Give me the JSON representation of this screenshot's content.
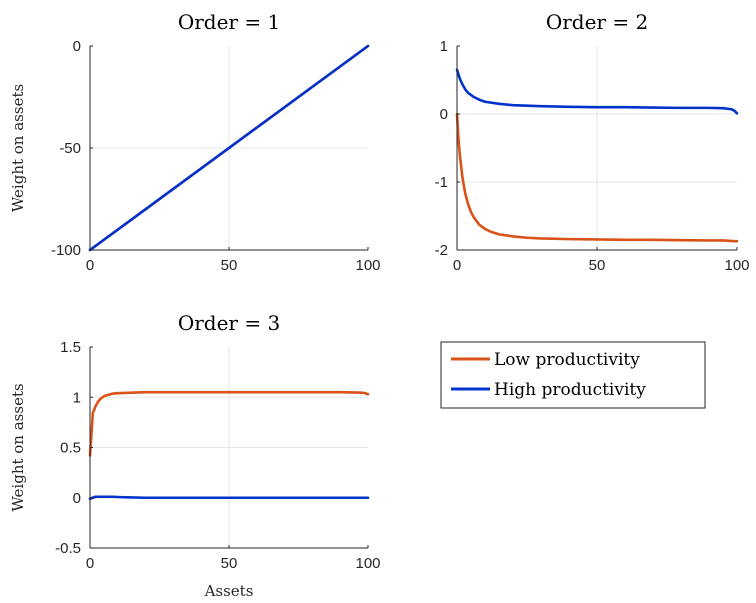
{
  "colors": {
    "low": "#D95319",
    "high": "#0033CC"
  },
  "legend": {
    "items": [
      {
        "label": "Low productivity",
        "color": "#D95319"
      },
      {
        "label": "High productivity",
        "color": "#0033CC"
      }
    ]
  },
  "chart_data": [
    {
      "type": "line",
      "title": "Order = 1",
      "xlabel": "",
      "ylabel": "Weight on assets",
      "xlim": [
        0,
        100
      ],
      "ylim": [
        -100,
        0
      ],
      "xticks": [
        0,
        50,
        100
      ],
      "yticks": [
        -100,
        -50,
        0
      ],
      "xtick_labels": [
        "0",
        "50",
        "100"
      ],
      "ytick_labels": [
        "-100",
        "-50",
        "0"
      ],
      "grid": true,
      "series": [
        {
          "key": "low",
          "color": "#D95319",
          "x": [
            0,
            100
          ],
          "y": [
            -100,
            0
          ]
        },
        {
          "key": "high",
          "color": "#0033CC",
          "x": [
            0,
            100
          ],
          "y": [
            -100,
            0
          ]
        }
      ]
    },
    {
      "type": "line",
      "title": "Order = 2",
      "xlabel": "",
      "ylabel": "",
      "xlim": [
        0,
        100
      ],
      "ylim": [
        -2,
        1
      ],
      "xticks": [
        0,
        50,
        100
      ],
      "yticks": [
        -2,
        -1,
        0,
        1
      ],
      "xtick_labels": [
        "0",
        "50",
        "100"
      ],
      "ytick_labels": [
        "-2",
        "-1",
        "0",
        "1"
      ],
      "grid": true,
      "series": [
        {
          "key": "low",
          "color": "#D95319",
          "x": [
            0,
            0.5,
            1,
            2,
            3,
            4,
            5,
            6,
            8,
            10,
            12,
            15,
            20,
            25,
            30,
            40,
            50,
            60,
            70,
            80,
            90,
            95,
            99,
            100
          ],
          "y": [
            0,
            -0.35,
            -0.6,
            -0.95,
            -1.18,
            -1.33,
            -1.44,
            -1.52,
            -1.63,
            -1.69,
            -1.73,
            -1.77,
            -1.8,
            -1.82,
            -1.83,
            -1.84,
            -1.845,
            -1.85,
            -1.85,
            -1.855,
            -1.86,
            -1.86,
            -1.87,
            -1.87
          ]
        },
        {
          "key": "high",
          "color": "#0033CC",
          "x": [
            0,
            1,
            2,
            3,
            4,
            6,
            8,
            10,
            15,
            20,
            30,
            40,
            50,
            60,
            70,
            80,
            90,
            95,
            98,
            99,
            100
          ],
          "y": [
            0.65,
            0.52,
            0.43,
            0.36,
            0.31,
            0.25,
            0.21,
            0.18,
            0.15,
            0.13,
            0.115,
            0.105,
            0.1,
            0.1,
            0.095,
            0.09,
            0.09,
            0.085,
            0.07,
            0.05,
            0.01
          ]
        }
      ]
    },
    {
      "type": "line",
      "title": "Order = 3",
      "xlabel": "Assets",
      "ylabel": "Weight on assets",
      "xlim": [
        0,
        100
      ],
      "ylim": [
        -0.5,
        1.5
      ],
      "xticks": [
        0,
        50,
        100
      ],
      "yticks": [
        -0.5,
        0,
        0.5,
        1,
        1.5
      ],
      "xtick_labels": [
        "0",
        "50",
        "100"
      ],
      "ytick_labels": [
        "-0.5",
        "0",
        "0.5",
        "1",
        "1.5"
      ],
      "grid": true,
      "series": [
        {
          "key": "low",
          "color": "#D95319",
          "x": [
            0,
            0.5,
            1,
            2,
            3,
            4,
            5,
            6,
            8,
            10,
            15,
            20,
            30,
            50,
            70,
            90,
            98,
            99,
            100
          ],
          "y": [
            0.42,
            0.62,
            0.84,
            0.91,
            0.96,
            0.99,
            1.01,
            1.02,
            1.035,
            1.04,
            1.045,
            1.05,
            1.05,
            1.05,
            1.05,
            1.05,
            1.045,
            1.04,
            1.03
          ]
        },
        {
          "key": "high",
          "color": "#0033CC",
          "x": [
            0,
            1,
            2,
            3,
            5,
            8,
            12,
            20,
            30,
            50,
            70,
            90,
            100
          ],
          "y": [
            -0.01,
            0.0,
            0.01,
            0.01,
            0.01,
            0.01,
            0.005,
            0.0,
            0.0,
            0.0,
            0.0,
            0.0,
            0.0
          ]
        }
      ]
    }
  ]
}
